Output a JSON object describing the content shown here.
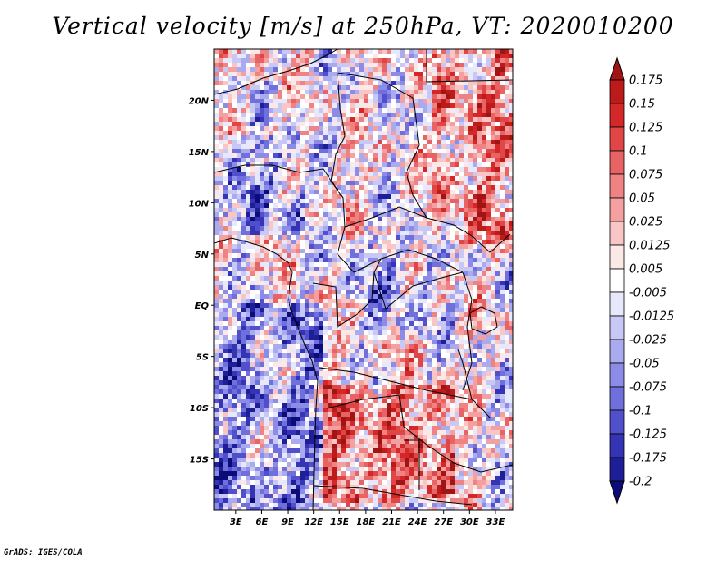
{
  "chart_data": {
    "type": "heatmap",
    "title": "Vertical velocity [m/s] at 250hPa, VT: 2020010200",
    "variable": "Vertical velocity",
    "units": "m/s",
    "level": "250hPa",
    "valid_time": "2020010200",
    "x_ticks": [
      "3E",
      "6E",
      "9E",
      "12E",
      "15E",
      "18E",
      "21E",
      "24E",
      "27E",
      "30E",
      "33E"
    ],
    "y_ticks": [
      "20N",
      "15N",
      "10N",
      "5N",
      "EQ",
      "5S",
      "10S",
      "15S"
    ],
    "x_range_deg": [
      0.5,
      35.0
    ],
    "y_range_deg": [
      -20.0,
      25.0
    ],
    "colorbar": {
      "levels": [
        "0.175",
        "0.15",
        "0.125",
        "0.1",
        "0.075",
        "0.05",
        "0.025",
        "0.0125",
        "0.005",
        "-0.005",
        "-0.0125",
        "-0.025",
        "-0.05",
        "-0.075",
        "-0.1",
        "-0.125",
        "-0.175",
        "-0.2"
      ],
      "colors": [
        "#a01414",
        "#bd1a1a",
        "#d42828",
        "#e04646",
        "#e86464",
        "#ef8282",
        "#f4a0a0",
        "#f9c6c6",
        "#fde8e8",
        "#ffffff",
        "#e8e8fc",
        "#c8c8f6",
        "#aaaaee",
        "#8c8ce8",
        "#7070dd",
        "#5050cc",
        "#3434b4",
        "#1e1e96",
        "#0c0c78"
      ]
    },
    "grid": false,
    "legend_position": "right"
  },
  "footer": {
    "credit": "GrADS: IGES/COLA"
  }
}
